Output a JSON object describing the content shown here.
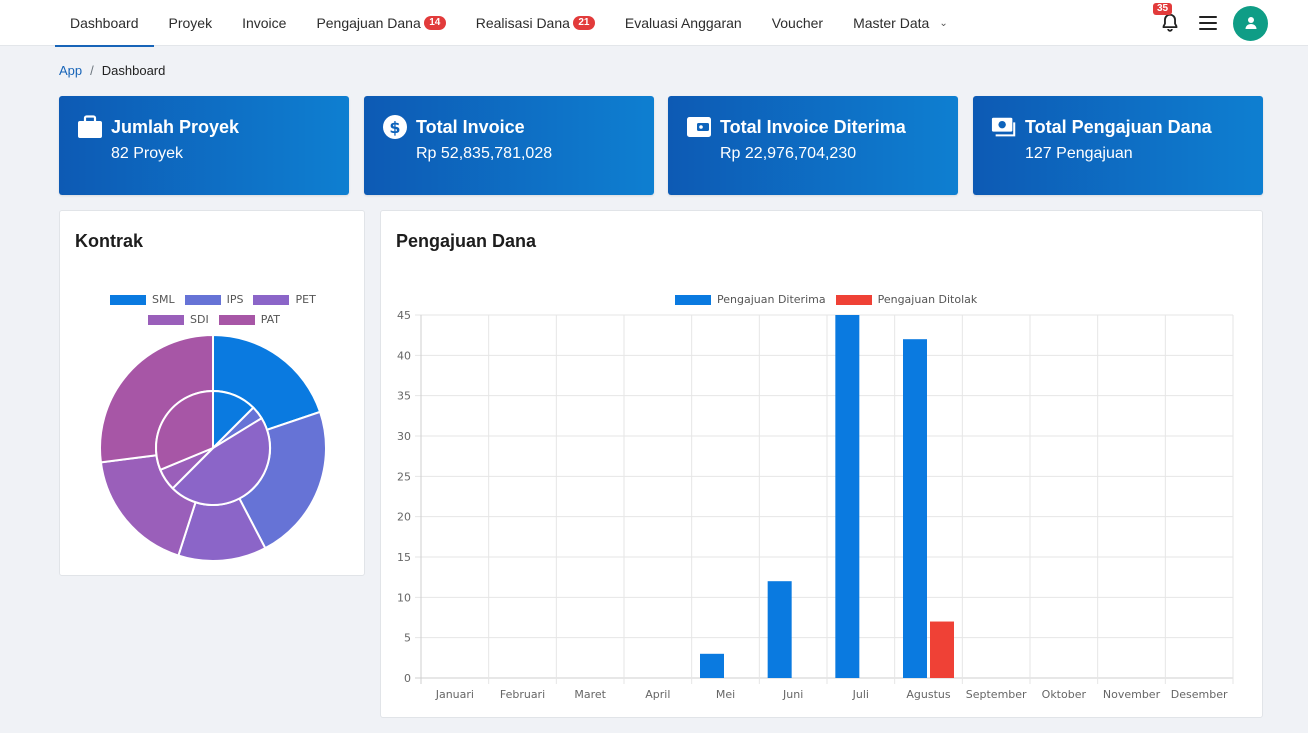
{
  "nav": {
    "items": [
      {
        "label": "Dashboard",
        "badge": "",
        "active": true
      },
      {
        "label": "Proyek",
        "badge": ""
      },
      {
        "label": "Invoice",
        "badge": ""
      },
      {
        "label": "Pengajuan Dana",
        "badge": "14"
      },
      {
        "label": "Realisasi Dana",
        "badge": "21"
      },
      {
        "label": "Evaluasi Anggaran",
        "badge": ""
      },
      {
        "label": "Voucher",
        "badge": ""
      },
      {
        "label": "Master Data",
        "badge": "",
        "dropdown": true
      }
    ],
    "notification_count": "35"
  },
  "breadcrumb": {
    "root": "App",
    "separator": "/",
    "current": "Dashboard"
  },
  "stats": [
    {
      "title": "Jumlah Proyek",
      "value": "82 Proyek",
      "icon": "briefcase-icon"
    },
    {
      "title": "Total Invoice",
      "value": "Rp 52,835,781,028",
      "icon": "dollar-circle-icon"
    },
    {
      "title": "Total Invoice Diterima",
      "value": "Rp 22,976,704,230",
      "icon": "wallet-icon"
    },
    {
      "title": "Total Pengajuan Dana",
      "value": "127 Pengajuan",
      "icon": "money-bill-icon"
    }
  ],
  "kontrak": {
    "title": "Kontrak",
    "chart_data": {
      "type": "pie",
      "variant": "doughnut",
      "legend": "top",
      "labels": [
        "SML",
        "IPS",
        "PET",
        "SDI",
        "PAT"
      ],
      "colors": [
        "#0a7ae0",
        "#6673d6",
        "#8b65c8",
        "#9a5fba",
        "#a756a6"
      ],
      "series": [
        {
          "values": [
            22,
            25,
            14,
            20,
            30
          ]
        },
        {
          "values": [
            10,
            3,
            37,
            5,
            25
          ]
        }
      ]
    }
  },
  "pengajuan": {
    "title": "Pengajuan Dana",
    "chart_data": {
      "type": "bar",
      "legend": "top",
      "categories": [
        "Januari",
        "Februari",
        "Maret",
        "April",
        "Mei",
        "Juni",
        "Juli",
        "Agustus",
        "September",
        "Oktober",
        "November",
        "Desember"
      ],
      "series": [
        {
          "name": "Pengajuan Diterima",
          "color": "#0a7ae0",
          "values": [
            0,
            0,
            0,
            0,
            3,
            12,
            45,
            42,
            0,
            0,
            0,
            0
          ]
        },
        {
          "name": "Pengajuan Ditolak",
          "color": "#ef4136",
          "values": [
            0,
            0,
            0,
            0,
            0,
            0,
            0,
            7,
            0,
            0,
            0,
            0
          ]
        }
      ],
      "ylim": [
        0,
        45
      ],
      "yticks": [
        0,
        5,
        10,
        15,
        20,
        25,
        30,
        35,
        40,
        45
      ],
      "grid": true
    }
  }
}
